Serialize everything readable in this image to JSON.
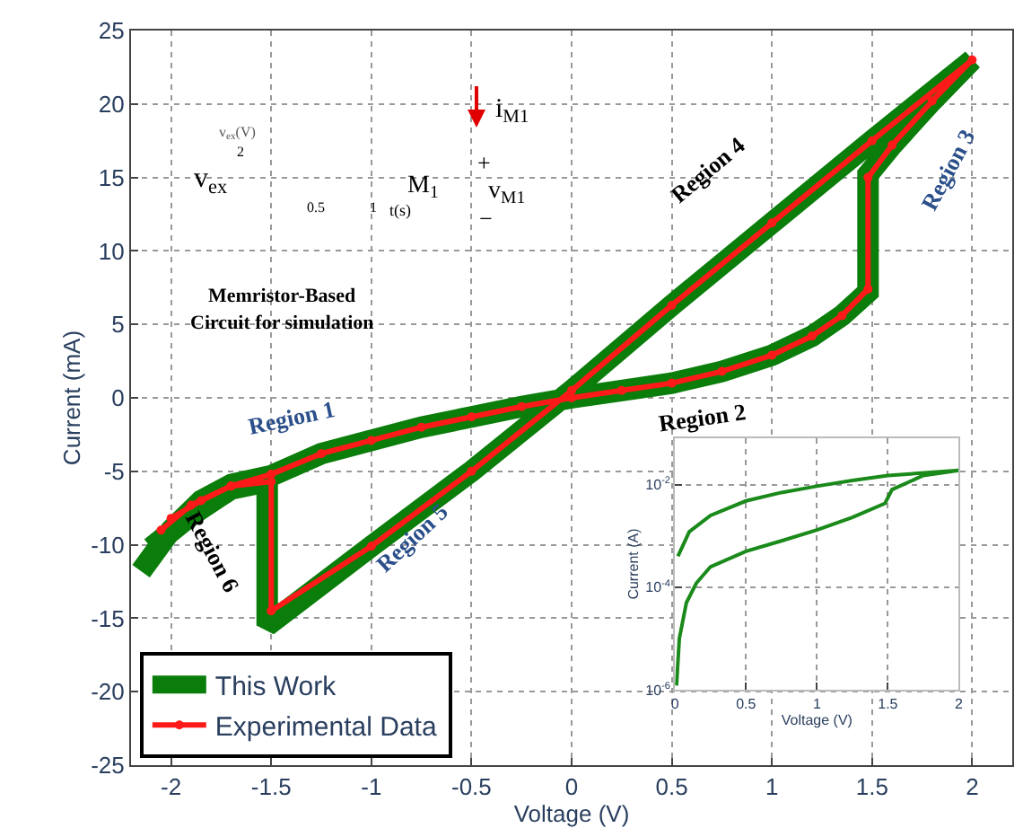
{
  "chart_data": [
    {
      "type": "line",
      "xlabel": "Voltage (V)",
      "ylabel": "Current (mA)",
      "xlim": [
        -2.2,
        2.2
      ],
      "ylim": [
        -25,
        25
      ],
      "xticks": [
        -2,
        -1.5,
        -1,
        -0.5,
        0,
        0.5,
        1,
        1.5,
        2
      ],
      "yticks": [
        -25,
        -20,
        -15,
        -10,
        -5,
        0,
        5,
        10,
        15,
        20,
        25
      ],
      "grid": true,
      "legend": "bottom left",
      "series": [
        {
          "name": "This Work",
          "color": "#0a7d0a",
          "marker": "none",
          "x": [
            -2.15,
            -2.0,
            -1.85,
            -1.7,
            -1.5,
            -1.25,
            -1.0,
            -0.75,
            -0.5,
            -0.25,
            0,
            0.25,
            0.5,
            0.75,
            1.0,
            1.2,
            1.35,
            1.48,
            1.48,
            1.6,
            1.8,
            2.0,
            1.5,
            1.0,
            0.5,
            0,
            -0.5,
            -1.0,
            -1.52,
            -1.52,
            -1.7,
            -1.9,
            -2.1
          ],
          "values": [
            -11.8,
            -9,
            -7,
            -5.9,
            -5.3,
            -3.8,
            -2.9,
            -2.0,
            -1.3,
            -0.6,
            0,
            0.5,
            1.0,
            1.8,
            2.9,
            4.2,
            5.6,
            7.2,
            15.2,
            17.2,
            20.2,
            23.0,
            17.5,
            11.9,
            6.3,
            0.5,
            -5.0,
            -10.1,
            -15.5,
            -5.7,
            -6.2,
            -8,
            -10.2
          ]
        },
        {
          "name": "Experimental Data",
          "color": "#ff1a1a",
          "marker": "circle",
          "x": [
            -2.05,
            -1.9,
            -1.7,
            -1.5,
            -1.25,
            -1.0,
            -0.75,
            -0.5,
            -0.25,
            0,
            0.25,
            0.5,
            0.75,
            1.0,
            1.2,
            1.35,
            1.48,
            1.48,
            1.6,
            1.8,
            2.0,
            1.5,
            1.0,
            0.5,
            0,
            -0.5,
            -1.0,
            -1.5,
            -1.5,
            -1.7,
            -1.85,
            -2.0
          ],
          "values": [
            -9.0,
            -7.3,
            -6.0,
            -5.2,
            -3.8,
            -2.9,
            -2.0,
            -1.3,
            -0.6,
            0,
            0.5,
            1.0,
            1.8,
            2.9,
            4.2,
            5.6,
            7.4,
            15.0,
            17.2,
            20.2,
            23.0,
            17.5,
            11.9,
            6.3,
            0.5,
            -5.0,
            -10.1,
            -14.5,
            -5.7,
            -6.0,
            -7.0,
            -8.2
          ]
        }
      ],
      "annotations": [
        "Region 1",
        "Region 2",
        "Region 3",
        "Region 4",
        "Region 5",
        "Region 6",
        "v$_{ex}$",
        "v$_{ex}$(V)",
        "2",
        "0.5",
        "1",
        "t(s)",
        "M$_{1}$",
        "i$_{M1}$",
        "+",
        "v$_{M1}$",
        "−",
        "Memristor-Based",
        "Circuit for simulation"
      ]
    },
    {
      "type": "line",
      "xlabel": "Voltage (V)",
      "ylabel": "Current (A)",
      "xlim": [
        0,
        2
      ],
      "ylim": [
        1e-06,
        0.08
      ],
      "log": "y",
      "grid": true,
      "xticks": [
        0,
        0.5,
        1,
        1.5,
        2
      ],
      "yticks": [
        {
          "value": 0.01,
          "label": "10$^{-2}$"
        },
        {
          "value": 0.0001,
          "label": "10$^{-4}$"
        },
        {
          "value": 1e-06,
          "label": "10$^{-6}$"
        }
      ],
      "series": [
        {
          "color": "#1a8a1a",
          "x": [
            0.01,
            0.03,
            0.08,
            0.15,
            0.25,
            0.5,
            0.75,
            1.0,
            1.25,
            1.48,
            1.53,
            1.75,
            2.0,
            1.5,
            1.25,
            1.0,
            0.75,
            0.5,
            0.25,
            0.1,
            0.02
          ],
          "values": [
            1.2e-06,
            1e-05,
            5e-05,
            0.00012,
            0.00025,
            0.0005,
            0.0008,
            0.0013,
            0.0023,
            0.0043,
            0.008,
            0.015,
            0.019,
            0.015,
            0.012,
            0.0093,
            0.007,
            0.0048,
            0.0025,
            0.0012,
            0.0004
          ]
        }
      ]
    }
  ]
}
